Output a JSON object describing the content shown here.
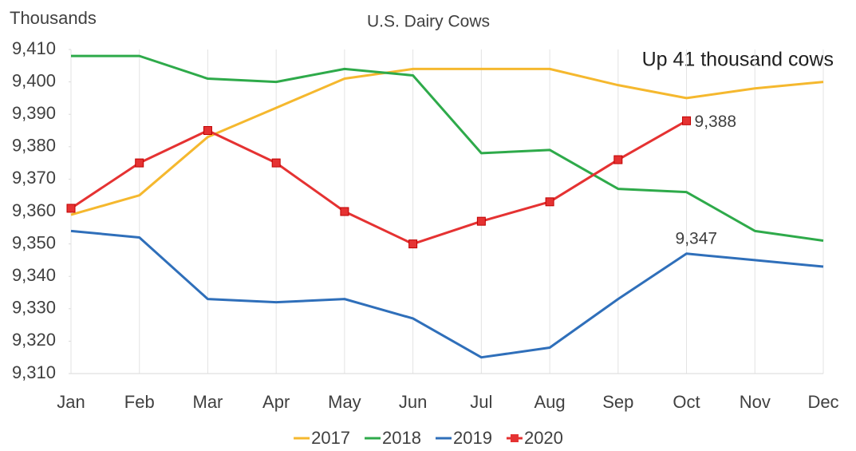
{
  "chart_data": {
    "type": "line",
    "title": "U.S. Dairy Cows",
    "y_label": "Thousands",
    "annotation": "Up 41 thousand cows",
    "categories": [
      "Jan",
      "Feb",
      "Mar",
      "Apr",
      "May",
      "Jun",
      "Jul",
      "Aug",
      "Sep",
      "Oct",
      "Nov",
      "Dec"
    ],
    "series": [
      {
        "name": "2017",
        "color": "#f5b82e",
        "values": [
          9359,
          9365,
          9383,
          9392,
          9401,
          9404,
          9404,
          9404,
          9399,
          9395,
          9398,
          9400
        ]
      },
      {
        "name": "2018",
        "color": "#2eaa4a",
        "values": [
          9408,
          9408,
          9401,
          9400,
          9404,
          9402,
          9378,
          9379,
          9367,
          9366,
          9354,
          9351
        ]
      },
      {
        "name": "2019",
        "color": "#2f6fba",
        "values": [
          9354,
          9352,
          9333,
          9332,
          9333,
          9327,
          9315,
          9318,
          9333,
          9347,
          9345,
          9343
        ],
        "value_labels": [
          null,
          null,
          null,
          null,
          null,
          null,
          null,
          null,
          null,
          "9,347",
          null,
          null
        ]
      },
      {
        "name": "2020",
        "color": "#e53232",
        "marker": "square",
        "values": [
          9361,
          9375,
          9385,
          9375,
          9360,
          9350,
          9357,
          9363,
          9376,
          9388,
          null,
          null
        ],
        "value_labels": [
          null,
          null,
          null,
          null,
          null,
          null,
          null,
          null,
          null,
          "9,388",
          null,
          null
        ]
      }
    ],
    "ylim": [
      9310,
      9410
    ],
    "yticks": [
      {
        "value": 9310,
        "label": "9,310"
      },
      {
        "value": 9320,
        "label": "9,320"
      },
      {
        "value": 9330,
        "label": "9,330"
      },
      {
        "value": 9340,
        "label": "9,340"
      },
      {
        "value": 9350,
        "label": "9,350"
      },
      {
        "value": 9360,
        "label": "9,360"
      },
      {
        "value": 9370,
        "label": "9,370"
      },
      {
        "value": 9380,
        "label": "9,380"
      },
      {
        "value": 9390,
        "label": "9,390"
      },
      {
        "value": 9400,
        "label": "9,400"
      },
      {
        "value": 9410,
        "label": "9,410"
      }
    ],
    "xgrid": true,
    "legend": "bottom"
  }
}
